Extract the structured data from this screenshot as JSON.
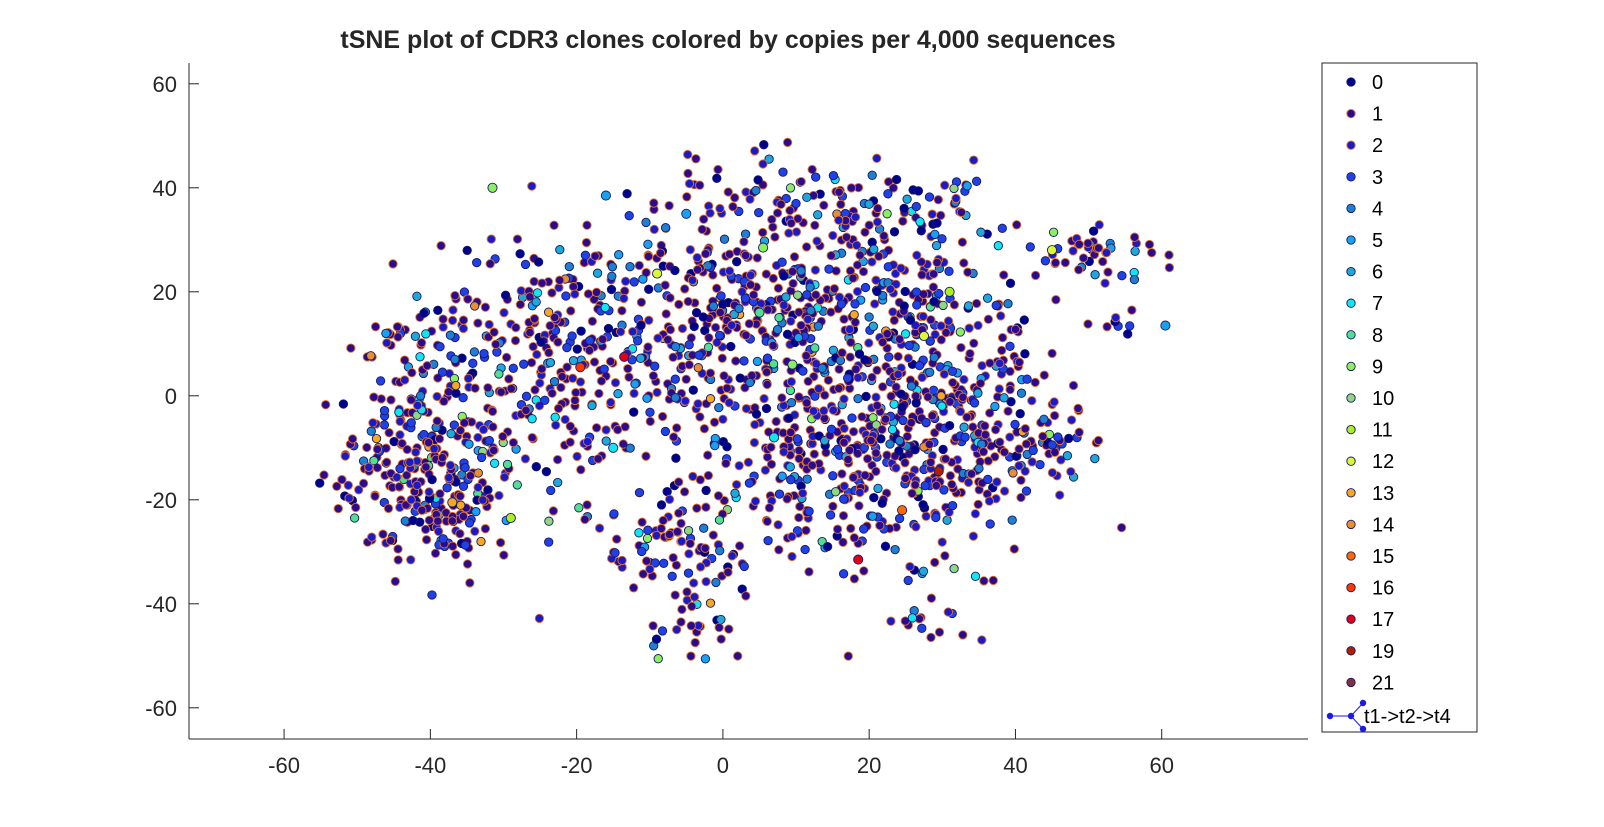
{
  "chart_data": {
    "type": "scatter",
    "title": "tSNE plot of CDR3 clones colored by copies per 4,000 sequences",
    "xlabel": "",
    "ylabel": "",
    "xlim": [
      -73,
      80
    ],
    "ylim": [
      -66,
      64
    ],
    "xticks": [
      -60,
      -40,
      -20,
      0,
      20,
      40,
      60
    ],
    "yticks": [
      60,
      40,
      20,
      0,
      -20,
      -40,
      -60
    ],
    "legend_position": "outside-right",
    "series": [
      {
        "name": "0",
        "color": "#00008F"
      },
      {
        "name": "1",
        "color": "#2A0A8E"
      },
      {
        "name": "2",
        "color": "#1A1AC8"
      },
      {
        "name": "3",
        "color": "#2040E8"
      },
      {
        "name": "4",
        "color": "#1F7FD0"
      },
      {
        "name": "5",
        "color": "#1AA0F0"
      },
      {
        "name": "6",
        "color": "#20A8D8"
      },
      {
        "name": "7",
        "color": "#10E6F0"
      },
      {
        "name": "8",
        "color": "#50E090"
      },
      {
        "name": "9",
        "color": "#8AF060"
      },
      {
        "name": "10",
        "color": "#90D880"
      },
      {
        "name": "11",
        "color": "#A8F020"
      },
      {
        "name": "12",
        "color": "#D8F838"
      },
      {
        "name": "13",
        "color": "#F8A820"
      },
      {
        "name": "14",
        "color": "#E89030"
      },
      {
        "name": "15",
        "color": "#FF6A00"
      },
      {
        "name": "16",
        "color": "#FF3800"
      },
      {
        "name": "17",
        "color": "#E00018"
      },
      {
        "name": "19",
        "color": "#B02000"
      },
      {
        "name": "21",
        "color": "#803040"
      }
    ],
    "path_series": {
      "name": "t1->t2->t4",
      "color": "#1A1AE8"
    },
    "clusters": [
      {
        "cx": -40,
        "cy": -14,
        "sx": 6,
        "sy": 10,
        "n": 320
      },
      {
        "cx": -22,
        "cy": 8,
        "sx": 9,
        "sy": 11,
        "n": 280
      },
      {
        "cx": 2,
        "cy": 18,
        "sx": 10,
        "sy": 13,
        "n": 380
      },
      {
        "cx": 18,
        "cy": -12,
        "sx": 11,
        "sy": 11,
        "n": 420
      },
      {
        "cx": 22,
        "cy": 14,
        "sx": 9,
        "sy": 10,
        "n": 240
      },
      {
        "cx": -5,
        "cy": -28,
        "sx": 6,
        "sy": 6,
        "n": 90
      },
      {
        "cx": 35,
        "cy": -5,
        "sx": 6,
        "sy": 12,
        "n": 150
      },
      {
        "cx": 50,
        "cy": 27,
        "sx": 4,
        "sy": 3,
        "n": 45
      },
      {
        "cx": -4,
        "cy": -45,
        "sx": 4,
        "sy": 3,
        "n": 25
      },
      {
        "cx": 44,
        "cy": -9,
        "sx": 4,
        "sy": 5,
        "n": 40
      },
      {
        "cx": -40,
        "cy": 12,
        "sx": 4,
        "sy": 4,
        "n": 40
      },
      {
        "cx": 30,
        "cy": 34,
        "sx": 4,
        "sy": 5,
        "n": 40
      },
      {
        "cx": 16,
        "cy": 36,
        "sx": 6,
        "sy": 4,
        "n": 50
      },
      {
        "cx": 27,
        "cy": -44,
        "sx": 4,
        "sy": 2,
        "n": 15
      },
      {
        "cx": 54,
        "cy": 15,
        "sx": 2,
        "sy": 2,
        "n": 8
      }
    ],
    "highlight_points": [
      {
        "x": -13.5,
        "y": 7.5,
        "series": "17"
      },
      {
        "x": 24.5,
        "y": -22,
        "series": "15"
      },
      {
        "x": -31.5,
        "y": 40,
        "series": "9"
      },
      {
        "x": -37,
        "y": -20.5,
        "series": "13"
      },
      {
        "x": 5,
        "y": 16,
        "series": "8"
      },
      {
        "x": -9,
        "y": 23.5,
        "series": "12"
      },
      {
        "x": 31,
        "y": 20,
        "series": "11"
      },
      {
        "x": 45,
        "y": 28,
        "series": "12"
      },
      {
        "x": -19.5,
        "y": 5.5,
        "series": "16"
      },
      {
        "x": 9.5,
        "y": 6,
        "series": "9"
      },
      {
        "x": 60.5,
        "y": 13.5,
        "series": "5"
      },
      {
        "x": 5.5,
        "y": 28.5,
        "series": "9"
      },
      {
        "x": -5,
        "y": 35,
        "series": "5"
      },
      {
        "x": -16,
        "y": 38.5,
        "series": "5"
      },
      {
        "x": 18.5,
        "y": -31.5,
        "series": "17"
      },
      {
        "x": 29.5,
        "y": -14.5,
        "series": "19"
      },
      {
        "x": -29,
        "y": -23.5,
        "series": "11"
      },
      {
        "x": 27.5,
        "y": 11.5,
        "series": "12"
      },
      {
        "x": -15,
        "y": -10,
        "series": "7"
      },
      {
        "x": 7,
        "y": -8,
        "series": "7"
      }
    ]
  }
}
